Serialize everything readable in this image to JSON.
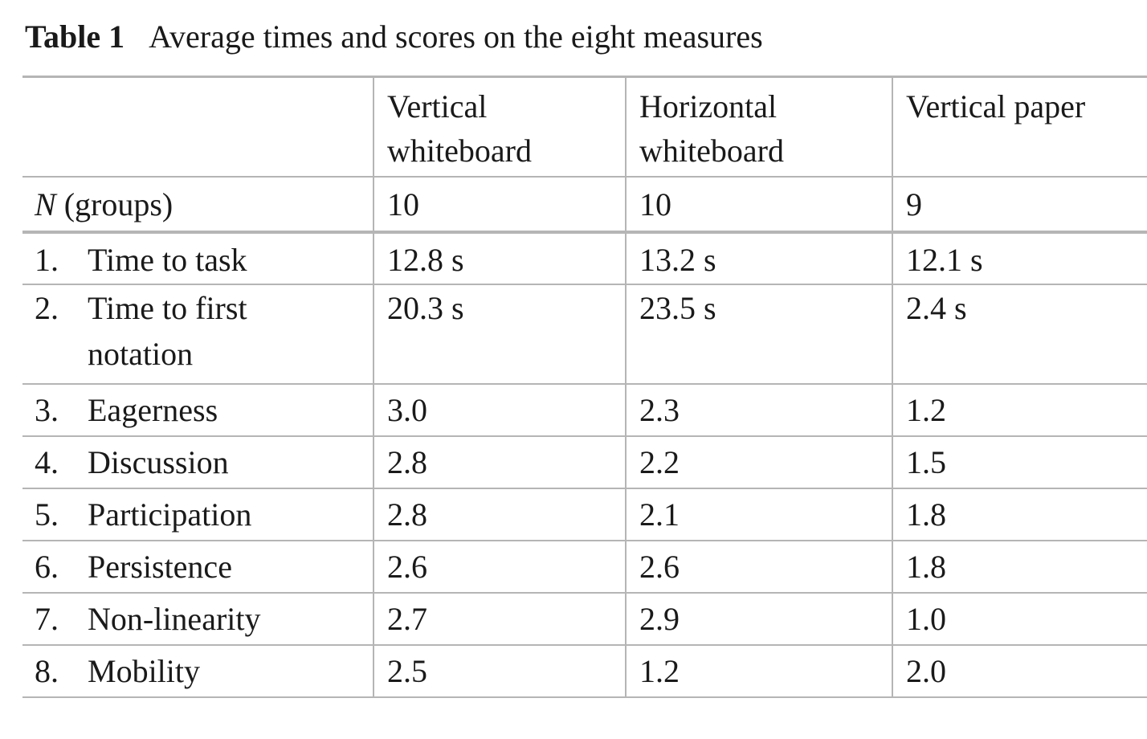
{
  "caption": {
    "label": "Table 1",
    "text": "Average times and scores on the eight measures"
  },
  "table": {
    "headers": [
      "Vertical whiteboard",
      "Horizontal whiteboard",
      "Vertical paper"
    ],
    "groups_label_var": "N",
    "groups_label_rest": " (groups)",
    "groups": [
      "10",
      "10",
      "9"
    ],
    "rows": [
      {
        "num": "1.",
        "name": "Time to task",
        "values": [
          "12.8 s",
          "13.2 s",
          "12.1 s"
        ]
      },
      {
        "num": "2.",
        "name": "Time to first notation",
        "values": [
          "20.3 s",
          "23.5 s",
          "2.4 s"
        ]
      },
      {
        "num": "3.",
        "name": "Eagerness",
        "values": [
          "3.0",
          "2.3",
          "1.2"
        ]
      },
      {
        "num": "4.",
        "name": "Discussion",
        "values": [
          "2.8",
          "2.2",
          "1.5"
        ]
      },
      {
        "num": "5.",
        "name": "Participation",
        "values": [
          "2.8",
          "2.1",
          "1.8"
        ]
      },
      {
        "num": "6.",
        "name": "Persistence",
        "values": [
          "2.6",
          "2.6",
          "1.8"
        ]
      },
      {
        "num": "7.",
        "name": "Non-linearity",
        "values": [
          "2.7",
          "2.9",
          "1.0"
        ]
      },
      {
        "num": "8.",
        "name": "Mobility",
        "values": [
          "2.5",
          "1.2",
          "2.0"
        ]
      }
    ]
  }
}
